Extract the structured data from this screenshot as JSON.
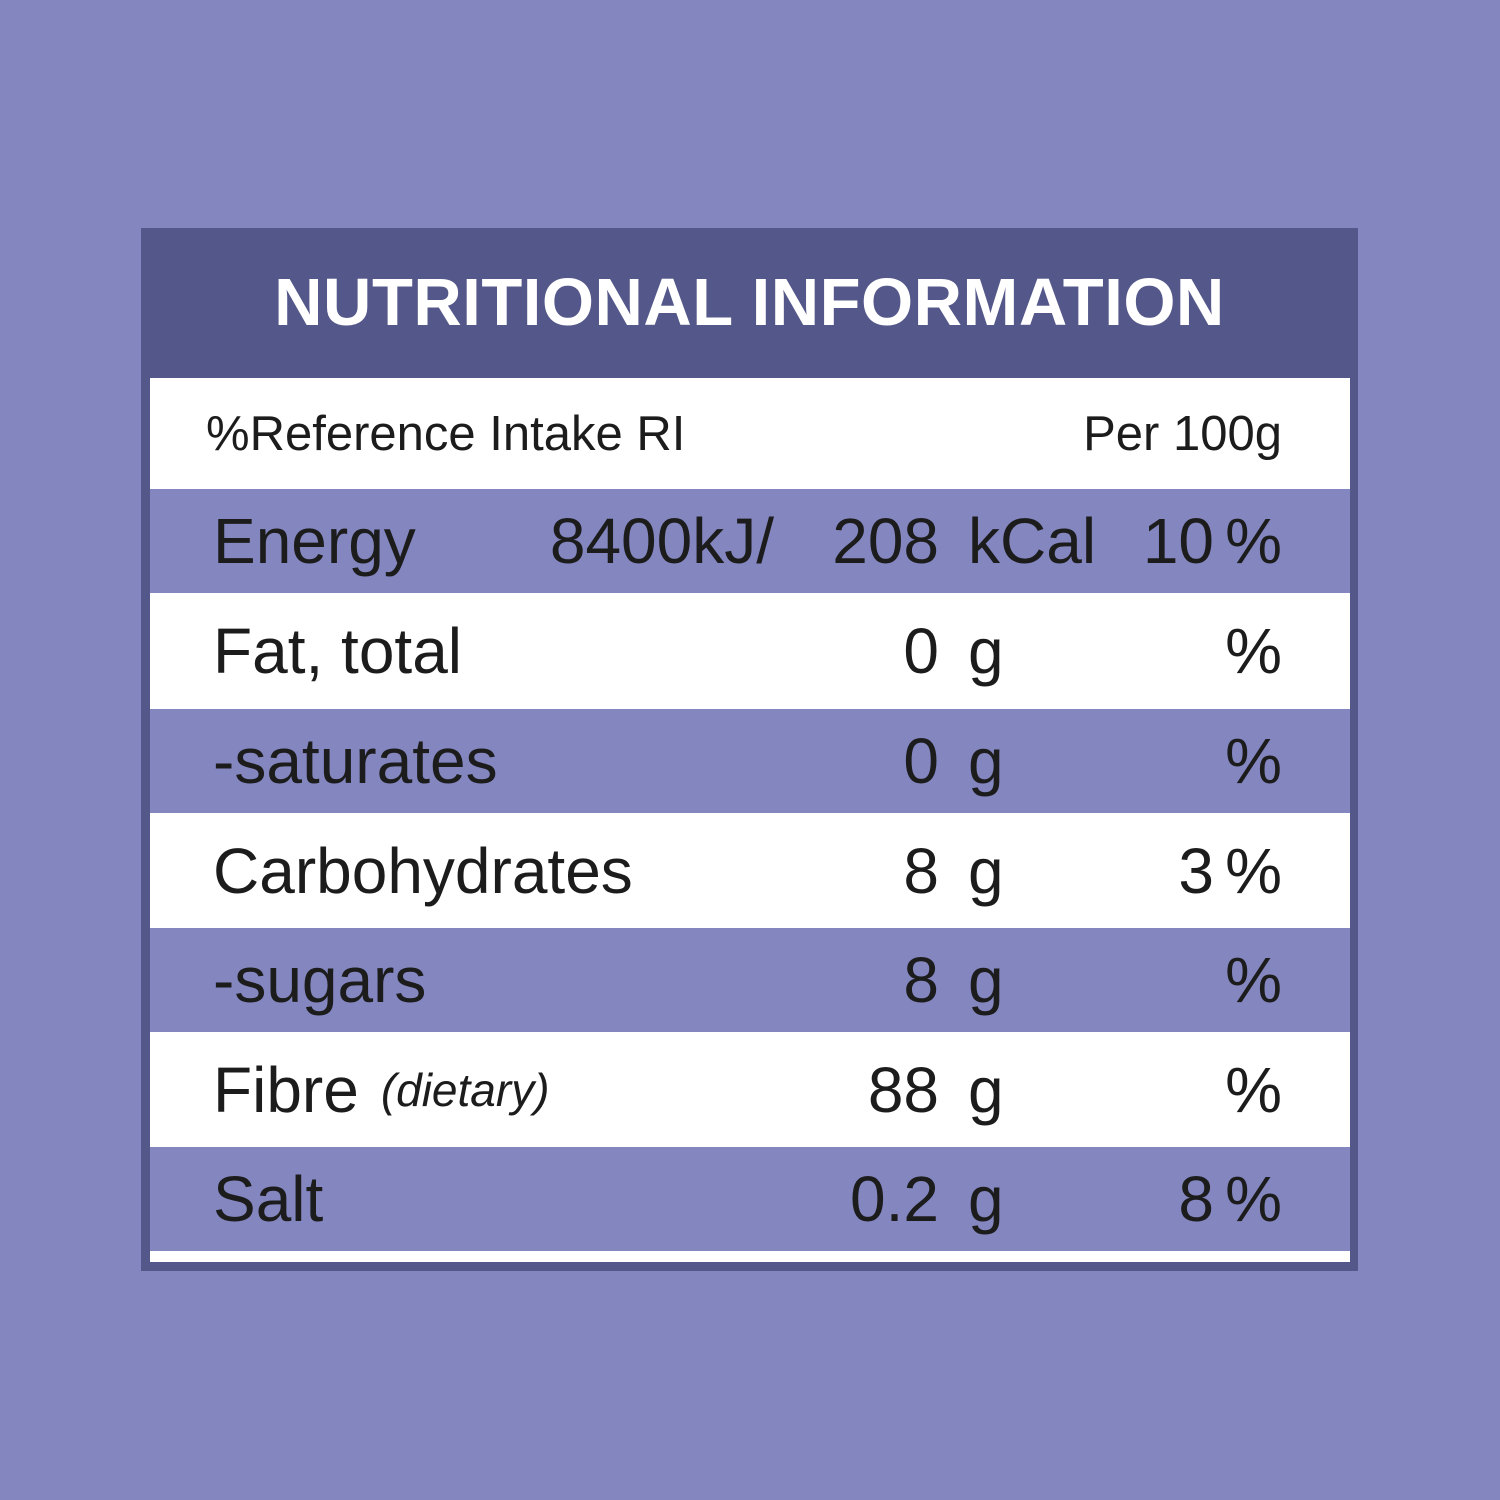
{
  "title": "NUTRITIONAL INFORMATION",
  "header": {
    "ref_label": "%Reference Intake RI",
    "per_label": "Per 100g"
  },
  "rows": [
    {
      "name": "Energy",
      "kj": "8400kJ/",
      "value": "208",
      "unit": "kCal",
      "ri": "10",
      "pct": "%"
    },
    {
      "name": "Fat, total",
      "value": "0",
      "unit": "g",
      "ri": "",
      "pct": "%"
    },
    {
      "name": "-saturates",
      "value": "0",
      "unit": "g",
      "ri": "",
      "pct": "%"
    },
    {
      "name": "Carbohydrates",
      "value": "8",
      "unit": "g",
      "ri": "3",
      "pct": "%"
    },
    {
      "name": "-sugars",
      "value": "8",
      "unit": "g",
      "ri": "",
      "pct": "%"
    },
    {
      "name": "Fibre",
      "sub": "(dietary)",
      "value": "88",
      "unit": "g",
      "ri": "",
      "pct": "%"
    },
    {
      "name": "Salt",
      "value": "0.2",
      "unit": "g",
      "ri": "8",
      "pct": "%"
    }
  ],
  "colors": {
    "background": "#8386bf",
    "panel": "#545789",
    "row_white": "#ffffff",
    "row_lilac": "#8386bf",
    "text": "#1c1c1c"
  }
}
